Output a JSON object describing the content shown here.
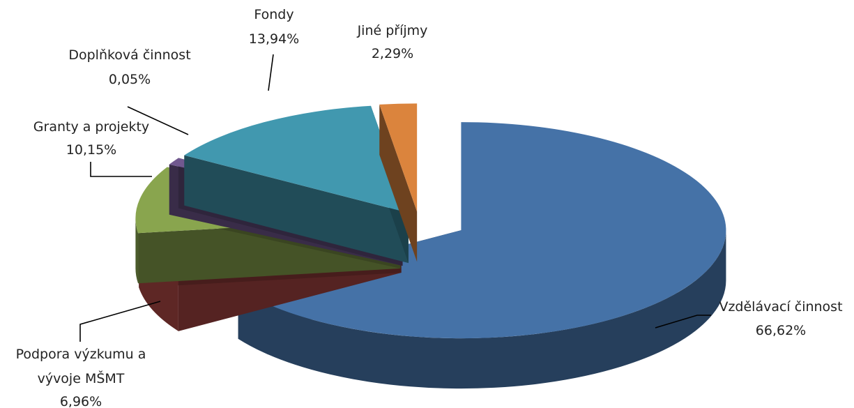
{
  "chart_data": {
    "type": "pie",
    "style": "3d-exploded",
    "title": "",
    "slices": [
      {
        "label": "Vzdělávací činnost",
        "value": 66.62,
        "value_label": "66,62%",
        "color": "#4572A7"
      },
      {
        "label": "Podpora výzkumu a vývoje MŠMT",
        "value": 6.96,
        "value_label": "6,96%",
        "color": "#AA4643"
      },
      {
        "label": "Granty a projekty",
        "value": 10.15,
        "value_label": "10,15%",
        "color": "#89A54E"
      },
      {
        "label": "Doplňková činnost",
        "value": 0.05,
        "value_label": "0,05%",
        "color": "#71588F"
      },
      {
        "label": "Fondy",
        "value": 13.94,
        "value_label": "13,94%",
        "color": "#4198AF"
      },
      {
        "label": "Jiné příjmy",
        "value": 2.29,
        "value_label": "2,29%",
        "color": "#DB843D"
      }
    ],
    "labels": {
      "vzdelavaci": {
        "name": "Vzdělávací činnost",
        "pct": "66,62%"
      },
      "podpora": {
        "line1": "Podpora výzkumu a",
        "line2": "vývoje MŠMT",
        "pct": "6,96%"
      },
      "granty": {
        "name": "Granty a projekty",
        "pct": "10,15%"
      },
      "doplnkova": {
        "name": "Doplňková činnost",
        "pct": "0,05%"
      },
      "fondy": {
        "name": "Fondy",
        "pct": "13,94%"
      },
      "jine": {
        "name": "Jiné příjmy",
        "pct": "2,29%"
      }
    }
  }
}
